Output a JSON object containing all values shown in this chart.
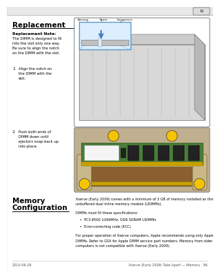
{
  "bg_color": "#ffffff",
  "page_margin_color": "#000000",
  "title": "Replacement",
  "replacement_note_title": "Replacement Note:",
  "note_lines": [
    "The DIMM is designed to fit",
    "into the slot only one way.",
    "Be sure to align the notch",
    "on the DIMM with the slot."
  ],
  "step1_num": "1",
  "step1_lines": [
    "Align the notch on",
    "the DIMM with the",
    "slot."
  ],
  "step2_num": "2",
  "step2_lines": [
    "Push both ends of",
    "DIMM down until",
    "ejectors snap back up",
    "into place."
  ],
  "lbl_ejectors": "Ejectors",
  "lbl_notch": "Notch",
  "lbl_connectors": "Connectors",
  "section2_line1": "Memory",
  "section2_line2": "Configuration",
  "body1_lines": [
    "Xserve (Early 2009) comes with a minimum of 3 GB of memory installed as three 1 GB",
    "unbuffered dual inline memory module (UDIMMs)."
  ],
  "body2": "DIMMs must fit these specifications:",
  "bullet1": "PC3-8500 1066MHz, DDR SDRAM UDIMMs",
  "bullet2": "Error-correcting code (ECC)",
  "body3_lines": [
    "For proper operation of Xserve computers, Apple recommends using only Apple-approved",
    "DIMMs. Refer to GSX for Apple DIMM service part numbers. Memory from older Xserve",
    "computers is not compatible with Xserve (Early 2009)."
  ],
  "footer_left": "2010-06-28",
  "footer_right": "Xserve (Early 2009) Take Apart — Memory",
  "footer_page": "96",
  "yellow": "#f5c400",
  "green_pcb": "#4a7c3a",
  "green_dark": "#2a5a1a",
  "blue_arrow": "#3a7abf",
  "blue_box": "#5599cc",
  "chip_dark": "#222222",
  "gold_pins": "#c8a000",
  "server_gray": "#d8d8d8",
  "server_dark": "#888888",
  "ejector_tan": "#c8b88a",
  "bg_diagram2": "#c0b090"
}
